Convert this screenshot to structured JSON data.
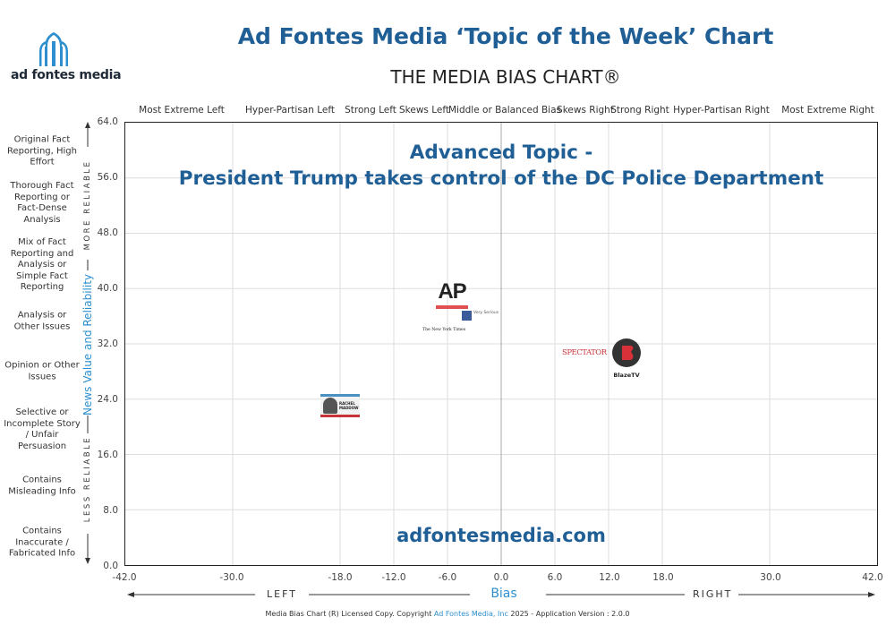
{
  "header": {
    "logo_text": "ad fontes media",
    "title": "Ad Fontes Media ‘Topic of the Week’ Chart",
    "subtitle": "THE MEDIA BIAS CHART®"
  },
  "overlay": {
    "line1": "Advanced Topic -",
    "line2": "President Trump takes control of the DC Police Department",
    "website": "adfontesmedia.com"
  },
  "bias_categories": [
    "Most Extreme Left",
    "Hyper-Partisan Left",
    "Strong Left",
    "Skews Left",
    "Middle or Balanced Bias",
    "Skews Right",
    "Strong Right",
    "Hyper-Partisan Right",
    "Most Extreme Right"
  ],
  "reliability_categories": [
    "Original Fact Reporting, High Effort",
    "Thorough Fact Reporting or Fact-Dense Analysis",
    "Mix of Fact Reporting and Analysis or Simple Fact Reporting",
    "Analysis or Other Issues",
    "Opinion or Other Issues",
    "Selective or Incomplete Story / Unfair Persuasion",
    "Contains Misleading Info",
    "Contains Inaccurate / Fabricated Info"
  ],
  "axis": {
    "more_reliable": "MORE RELIABLE",
    "less_reliable": "LESS RELIABLE",
    "y_label": "News Value and Reliability",
    "x_label": "Bias",
    "left_label": "LEFT",
    "right_label": "RIGHT"
  },
  "footer": {
    "prefix": "Media Bias Chart (R) Licensed Copy. Copyright",
    "company": "Ad Fontes Media, Inc",
    "suffix": "2025  - Application Version : 2.0.0"
  },
  "chart_data": {
    "type": "scatter",
    "title": "Advanced Topic - President Trump takes control of the DC Police Department",
    "xlabel": "Bias",
    "ylabel": "News Value and Reliability",
    "xlim": [
      -42,
      42
    ],
    "ylim": [
      0,
      64
    ],
    "x_ticks": [
      "-42.0",
      "-30.0",
      "-18.0",
      "-12.0",
      "-6.0",
      "0.0",
      "6.0",
      "12.0",
      "18.0",
      "30.0",
      "42.0"
    ],
    "y_ticks": [
      "0.0",
      "8.0",
      "16.0",
      "24.0",
      "32.0",
      "40.0",
      "48.0",
      "56.0",
      "64.0"
    ],
    "grid": true,
    "points": [
      {
        "x": -5.5,
        "y": 39.0,
        "logo": "AP"
      },
      {
        "x": -2.2,
        "y": 36.0,
        "logo": "Very Serious"
      },
      {
        "x": -6.5,
        "y": 34.0,
        "logo": "The New York Times"
      },
      {
        "x": 9.0,
        "y": 30.5,
        "logo": "SPECTATOR"
      },
      {
        "x": 14.0,
        "y": 30.0,
        "logo": "BlazeTV"
      },
      {
        "x": -18.0,
        "y": 23.0,
        "logo": "RACHEL MADDOW"
      }
    ]
  }
}
